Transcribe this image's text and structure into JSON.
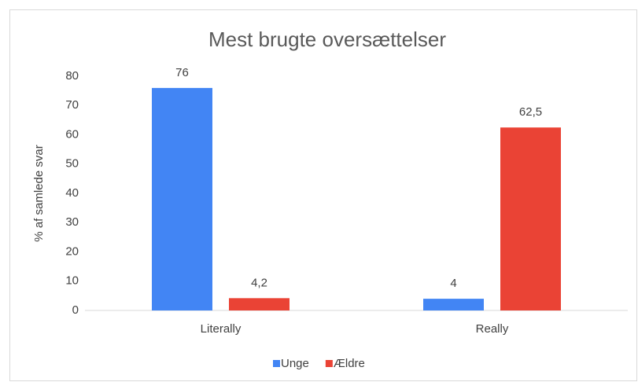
{
  "chart_data": {
    "type": "bar",
    "title": "Mest brugte oversættelser",
    "y_label": "% af samlede svar",
    "categories": [
      "Literally",
      "Really"
    ],
    "series": [
      {
        "name": "Unge",
        "color": "#4285f4",
        "values": [
          76,
          4
        ],
        "value_labels": [
          "76",
          "4"
        ]
      },
      {
        "name": "Ældre",
        "color": "#ea4335",
        "values": [
          4.2,
          62.5
        ],
        "value_labels": [
          "4,2",
          "62,5"
        ]
      }
    ],
    "ylim": [
      0,
      80
    ],
    "yticks": [
      0,
      10,
      20,
      30,
      40,
      50,
      60,
      70,
      80
    ],
    "grid": false,
    "legend": "bottom"
  }
}
